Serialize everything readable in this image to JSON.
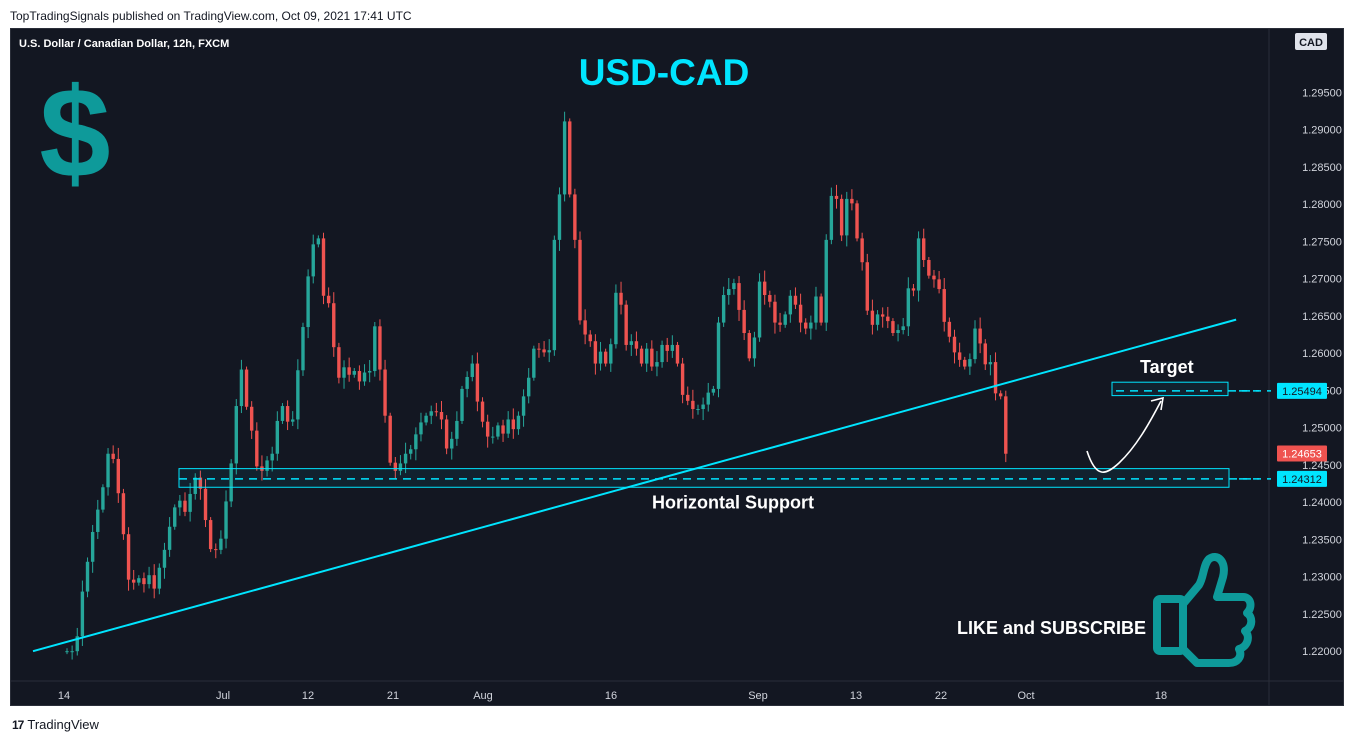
{
  "header": {
    "published": "TopTradingSignals published on TradingView.com, Oct 09, 2021 17:41 UTC"
  },
  "footer": {
    "brand": "TradingView",
    "logo_icon": "tradingview-logo-icon"
  },
  "chart_data": {
    "type": "candlestick",
    "symbol_title": "U.S. Dollar / Canadian Dollar, 12h, FXCM",
    "headline": "USD-CAD",
    "currency_badge": "CAD",
    "up_color": "#26a69a",
    "down_color": "#ef5350",
    "accent_color": "#00e5ff",
    "yaxis": {
      "ticks": [
        "1.29500",
        "1.29000",
        "1.28500",
        "1.28000",
        "1.27500",
        "1.27000",
        "1.26500",
        "1.26000",
        "1.25500",
        "1.25000",
        "1.24500",
        "1.24000",
        "1.23500",
        "1.23000",
        "1.22500",
        "1.22000"
      ],
      "ylim": [
        1.216,
        1.3035
      ]
    },
    "xaxis": {
      "ticks": [
        "14",
        "Jul",
        "12",
        "21",
        "Aug",
        "16",
        "Sep",
        "13",
        "22",
        "Oct",
        "18"
      ]
    },
    "price_labels": [
      {
        "value": "1.25494",
        "price": 1.25494,
        "style": "cyan"
      },
      {
        "value": "1.24653",
        "price": 1.24653,
        "style": "red"
      },
      {
        "value": "1.24312",
        "price": 1.24312,
        "style": "cyan"
      }
    ],
    "annotations": {
      "target_label": "Target",
      "support_label": "Horizontal Support",
      "cta_label": "LIKE and SUBSCRIBE",
      "dollar_icon": "dollar-sign-icon",
      "thumbs_icon": "thumbs-up-icon"
    },
    "levels": {
      "target": 1.25494,
      "support": 1.24312,
      "support_zone": [
        1.242,
        1.2445
      ],
      "target_zone": [
        1.2543,
        1.2561
      ]
    },
    "trendline": {
      "start": [
        0,
        1.22
      ],
      "end": [
        224,
        1.2645
      ]
    },
    "candles": [
      [
        1.22,
        1.22
      ],
      [
        1.22,
        1.22
      ],
      [
        1.22,
        1.222
      ],
      [
        1.222,
        1.228
      ],
      [
        1.228,
        1.232
      ],
      [
        1.232,
        1.236
      ],
      [
        1.236,
        1.239
      ],
      [
        1.239,
        1.242
      ],
      [
        1.242,
        1.2465
      ],
      [
        1.2465,
        1.2458
      ],
      [
        1.2458,
        1.2412
      ],
      [
        1.2412,
        1.2357
      ],
      [
        1.2357,
        1.2296
      ],
      [
        1.2296,
        1.2292
      ],
      [
        1.2292,
        1.2298
      ],
      [
        1.2298,
        1.229
      ],
      [
        1.229,
        1.2302
      ],
      [
        1.2302,
        1.2284
      ],
      [
        1.2284,
        1.2312
      ],
      [
        1.2312,
        1.2336
      ],
      [
        1.2336,
        1.2367
      ],
      [
        1.2367,
        1.2393
      ],
      [
        1.2393,
        1.2402
      ],
      [
        1.2402,
        1.2387
      ],
      [
        1.2387,
        1.2411
      ],
      [
        1.2411,
        1.2433
      ],
      [
        1.2433,
        1.2418
      ],
      [
        1.2418,
        1.2376
      ],
      [
        1.2376,
        1.2337
      ],
      [
        1.2337,
        1.2336
      ],
      [
        1.2336,
        1.2351
      ],
      [
        1.2351,
        1.2401
      ],
      [
        1.2401,
        1.2452
      ],
      [
        1.2452,
        1.2529
      ],
      [
        1.2529,
        1.2578
      ],
      [
        1.2578,
        1.2528
      ],
      [
        1.2528,
        1.2496
      ],
      [
        1.2496,
        1.2448
      ],
      [
        1.2448,
        1.2442
      ],
      [
        1.2442,
        1.2456
      ],
      [
        1.2456,
        1.2465
      ],
      [
        1.2465,
        1.2509
      ],
      [
        1.2509,
        1.2529
      ],
      [
        1.2529,
        1.2508
      ],
      [
        1.2508,
        1.2511
      ],
      [
        1.2511,
        1.2577
      ],
      [
        1.2577,
        1.2635
      ],
      [
        1.2635,
        1.2703
      ],
      [
        1.2703,
        1.2746
      ],
      [
        1.2746,
        1.2754
      ],
      [
        1.2754,
        1.2677
      ],
      [
        1.2677,
        1.2667
      ],
      [
        1.2667,
        1.2608
      ],
      [
        1.2608,
        1.2567
      ],
      [
        1.2567,
        1.2581
      ],
      [
        1.2581,
        1.2571
      ],
      [
        1.2571,
        1.2576
      ],
      [
        1.2576,
        1.2562
      ],
      [
        1.2562,
        1.2574
      ],
      [
        1.2574,
        1.2576
      ],
      [
        1.2576,
        1.2636
      ],
      [
        1.2636,
        1.2578
      ],
      [
        1.2578,
        1.2516
      ],
      [
        1.2516,
        1.2453
      ],
      [
        1.2453,
        1.2442
      ],
      [
        1.2442,
        1.2452
      ],
      [
        1.2452,
        1.2465
      ],
      [
        1.2465,
        1.2471
      ],
      [
        1.2471,
        1.2491
      ],
      [
        1.2491,
        1.2507
      ],
      [
        1.2507,
        1.2516
      ],
      [
        1.2516,
        1.2522
      ],
      [
        1.2522,
        1.2521
      ],
      [
        1.2521,
        1.2511
      ],
      [
        1.2511,
        1.2472
      ],
      [
        1.2472,
        1.2485
      ],
      [
        1.2485,
        1.2509
      ],
      [
        1.2509,
        1.2552
      ],
      [
        1.2552,
        1.2568
      ],
      [
        1.2568,
        1.2586
      ],
      [
        1.2586,
        1.2535
      ],
      [
        1.2535,
        1.2508
      ],
      [
        1.2508,
        1.2488
      ],
      [
        1.2488,
        1.2488
      ],
      [
        1.2488,
        1.2503
      ],
      [
        1.2503,
        1.2492
      ],
      [
        1.2492,
        1.2511
      ],
      [
        1.2511,
        1.2498
      ],
      [
        1.2498,
        1.2516
      ],
      [
        1.2516,
        1.2542
      ],
      [
        1.2542,
        1.2567
      ],
      [
        1.2567,
        1.2606
      ],
      [
        1.2606,
        1.2605
      ],
      [
        1.2605,
        1.2601
      ],
      [
        1.2601,
        1.2604
      ],
      [
        1.2604,
        1.2752
      ],
      [
        1.2752,
        1.2813
      ],
      [
        1.2813,
        1.2911
      ],
      [
        1.2911,
        1.2813
      ],
      [
        1.2813,
        1.2752
      ],
      [
        1.2752,
        1.2644
      ],
      [
        1.2644,
        1.2625
      ],
      [
        1.2625,
        1.2616
      ],
      [
        1.2616,
        1.2586
      ],
      [
        1.2586,
        1.2602
      ],
      [
        1.2602,
        1.2586
      ],
      [
        1.2586,
        1.2612
      ],
      [
        1.2612,
        1.2681
      ],
      [
        1.2681,
        1.2665
      ],
      [
        1.2665,
        1.2611
      ],
      [
        1.2611,
        1.2616
      ],
      [
        1.2616,
        1.2606
      ],
      [
        1.2606,
        1.2586
      ],
      [
        1.2586,
        1.2606
      ],
      [
        1.2606,
        1.2582
      ],
      [
        1.2582,
        1.2588
      ],
      [
        1.2588,
        1.2611
      ],
      [
        1.2611,
        1.2603
      ],
      [
        1.2603,
        1.2611
      ],
      [
        1.2611,
        1.2586
      ],
      [
        1.2586,
        1.2544
      ],
      [
        1.2544,
        1.2536
      ],
      [
        1.2536,
        1.2525
      ],
      [
        1.2525,
        1.2525
      ],
      [
        1.2525,
        1.2531
      ],
      [
        1.2531,
        1.2547
      ],
      [
        1.2547,
        1.2552
      ],
      [
        1.2552,
        1.2641
      ],
      [
        1.2641,
        1.2678
      ],
      [
        1.2678,
        1.2686
      ],
      [
        1.2686,
        1.2694
      ],
      [
        1.2694,
        1.2658
      ],
      [
        1.2658,
        1.2627
      ],
      [
        1.2627,
        1.2593
      ],
      [
        1.2593,
        1.2621
      ],
      [
        1.2621,
        1.2696
      ],
      [
        1.2696,
        1.2678
      ],
      [
        1.2678,
        1.2669
      ],
      [
        1.2669,
        1.2641
      ],
      [
        1.2641,
        1.2638
      ],
      [
        1.2638,
        1.2652
      ],
      [
        1.2652,
        1.2677
      ],
      [
        1.2677,
        1.2665
      ],
      [
        1.2665,
        1.2641
      ],
      [
        1.2641,
        1.2633
      ],
      [
        1.2633,
        1.2641
      ],
      [
        1.2641,
        1.2676
      ],
      [
        1.2676,
        1.2641
      ],
      [
        1.2641,
        1.2752
      ],
      [
        1.2752,
        1.2811
      ],
      [
        1.2811,
        1.2807
      ],
      [
        1.2807,
        1.2758
      ],
      [
        1.2758,
        1.2807
      ],
      [
        1.2807,
        1.2801
      ],
      [
        1.2801,
        1.2754
      ],
      [
        1.2754,
        1.2722
      ],
      [
        1.2722,
        1.2657
      ],
      [
        1.2657,
        1.2638
      ],
      [
        1.2638,
        1.2652
      ],
      [
        1.2652,
        1.2649
      ],
      [
        1.2649,
        1.2643
      ],
      [
        1.2643,
        1.2627
      ],
      [
        1.2627,
        1.2631
      ],
      [
        1.2631,
        1.2636
      ],
      [
        1.2636,
        1.2687
      ],
      [
        1.2687,
        1.2684
      ],
      [
        1.2684,
        1.2754
      ],
      [
        1.2754,
        1.2725
      ],
      [
        1.2725,
        1.2704
      ],
      [
        1.2704,
        1.2699
      ],
      [
        1.2699,
        1.2686
      ],
      [
        1.2686,
        1.2642
      ],
      [
        1.2642,
        1.2622
      ],
      [
        1.2622,
        1.2601
      ],
      [
        1.2601,
        1.2591
      ],
      [
        1.2591,
        1.2582
      ],
      [
        1.2582,
        1.2592
      ],
      [
        1.2592,
        1.2633
      ],
      [
        1.2633,
        1.2613
      ],
      [
        1.2613,
        1.2585
      ],
      [
        1.2585,
        1.2588
      ],
      [
        1.2588,
        1.2546
      ],
      [
        1.2546,
        1.2542
      ],
      [
        1.2542,
        1.2465
      ]
    ]
  }
}
